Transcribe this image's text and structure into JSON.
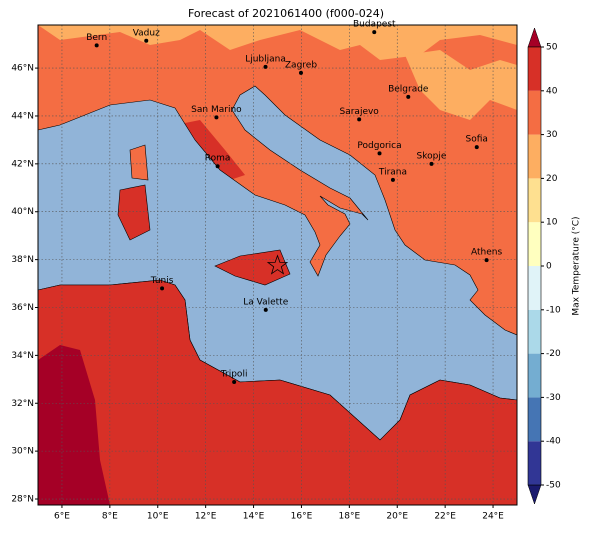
{
  "map": {
    "title": "Forecast of 2021061400 (f000-024)",
    "xlim": [
      5,
      25
    ],
    "ylim": [
      27.75,
      47.8
    ],
    "xticks": [
      {
        "value": 6,
        "label": "6°E"
      },
      {
        "value": 8,
        "label": "8°E"
      },
      {
        "value": 10,
        "label": "10°E"
      },
      {
        "value": 12,
        "label": "12°E"
      },
      {
        "value": 14,
        "label": "14°E"
      },
      {
        "value": 16,
        "label": "16°E"
      },
      {
        "value": 18,
        "label": "18°E"
      },
      {
        "value": 20,
        "label": "20°E"
      },
      {
        "value": 22,
        "label": "22°E"
      },
      {
        "value": 24,
        "label": "24°E"
      }
    ],
    "yticks": [
      {
        "value": 28,
        "label": "28°N"
      },
      {
        "value": 30,
        "label": "30°N"
      },
      {
        "value": 32,
        "label": "32°N"
      },
      {
        "value": 34,
        "label": "34°N"
      },
      {
        "value": 36,
        "label": "36°N"
      },
      {
        "value": 38,
        "label": "38°N"
      },
      {
        "value": 40,
        "label": "40°N"
      },
      {
        "value": 42,
        "label": "42°N"
      },
      {
        "value": 44,
        "label": "44°N"
      },
      {
        "value": 46,
        "label": "46°N"
      }
    ],
    "grid": true,
    "cities": [
      {
        "name": "Bern",
        "lon": 7.45,
        "lat": 46.95
      },
      {
        "name": "Vaduz",
        "lon": 9.52,
        "lat": 47.14
      },
      {
        "name": "Budapest",
        "lon": 19.04,
        "lat": 47.5
      },
      {
        "name": "Ljubljana",
        "lon": 14.5,
        "lat": 46.05
      },
      {
        "name": "Zagreb",
        "lon": 15.98,
        "lat": 45.8
      },
      {
        "name": "Belgrade",
        "lon": 20.46,
        "lat": 44.8
      },
      {
        "name": "Sarajevo",
        "lon": 18.41,
        "lat": 43.86
      },
      {
        "name": "San Marino",
        "lon": 12.45,
        "lat": 43.94
      },
      {
        "name": "Sofia",
        "lon": 23.32,
        "lat": 42.7
      },
      {
        "name": "Podgorica",
        "lon": 19.26,
        "lat": 42.44
      },
      {
        "name": "Skopje",
        "lon": 21.43,
        "lat": 42.0
      },
      {
        "name": "Roma",
        "lon": 12.5,
        "lat": 41.9
      },
      {
        "name": "Tirana",
        "lon": 19.82,
        "lat": 41.33
      },
      {
        "name": "Athens",
        "lon": 23.73,
        "lat": 37.98
      },
      {
        "name": "Tunis",
        "lon": 10.18,
        "lat": 36.8
      },
      {
        "name": "La Valette",
        "lon": 14.51,
        "lat": 35.9
      },
      {
        "name": "Tripoli",
        "lon": 13.19,
        "lat": 32.89
      }
    ],
    "star": {
      "lon": 15.0,
      "lat": 37.75,
      "color": "#d73027"
    },
    "colorbar": {
      "label": "Max Temperature (°C)",
      "ticks": [
        -50,
        -40,
        -30,
        -20,
        -10,
        0,
        10,
        20,
        30,
        40,
        50
      ],
      "colors": [
        "#313695",
        "#4575b4",
        "#74add1",
        "#abd9e9",
        "#e0f3f8",
        "#ffffbf",
        "#fee090",
        "#fdae61",
        "#f46d43",
        "#d73027"
      ]
    }
  }
}
